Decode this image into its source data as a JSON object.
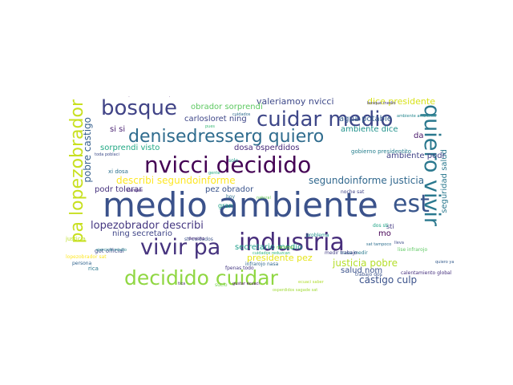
{
  "words": [
    {
      "text": "medio ambiente",
      "color": "#3b528b"
    },
    {
      "text": "decidido cuidar",
      "color": "#90d743"
    },
    {
      "text": "nvicci decidido",
      "color": "#440154"
    },
    {
      "text": "denisedresserg quiero",
      "color": "#2f6c8e"
    },
    {
      "text": "cuidar medio",
      "color": "#3f4889"
    },
    {
      "text": "bosque",
      "color": "#414487"
    },
    {
      "text": "industria",
      "color": "#472d7b"
    },
    {
      "text": "vivir pa",
      "color": "#46337e"
    },
    {
      "text": "pa lopezobrador",
      "color": "#c8e020"
    },
    {
      "text": "quiero vivir",
      "color": "#2a788e"
    },
    {
      "text": "est",
      "color": "#39568c"
    },
    {
      "text": "lopezobrador describi",
      "color": "#453781"
    },
    {
      "text": "castigo culp",
      "color": "#3b528b"
    },
    {
      "text": "justicia pobre",
      "color": "#b5de2b"
    },
    {
      "text": "pobre castigo",
      "color": "#355f8d"
    },
    {
      "text": "segundoinforme justicia",
      "color": "#31688e"
    },
    {
      "text": "describi segundoinforme",
      "color": "#fde725"
    },
    {
      "text": "valeriamoy nvicci",
      "color": "#3e4989"
    },
    {
      "text": "dice presidente",
      "color": "#d8e219"
    },
    {
      "text": "obrador sorprendi",
      "color": "#5ec962"
    },
    {
      "text": "sorprendi visto",
      "color": "#22a884"
    },
    {
      "text": "ambiente dice",
      "color": "#20928c"
    },
    {
      "text": "presidente pez",
      "color": "#e5e419"
    },
    {
      "text": "secretario medio",
      "color": "#1f9e89"
    },
    {
      "text": "pez obrador",
      "color": "#3a548c"
    },
    {
      "text": "ning secretario",
      "color": "#404688"
    },
    {
      "text": "dosa osperdidos",
      "color": "#472a7a"
    },
    {
      "text": "agua potable",
      "color": "#355e8d"
    },
    {
      "text": "salud nom",
      "color": "#3b528b"
    },
    {
      "text": "podr tolerar",
      "color": "#46327e"
    },
    {
      "text": "carlosloret ning",
      "color": "#3f4788"
    },
    {
      "text": "si si",
      "color": "#481f70"
    },
    {
      "text": "seguridad salud",
      "color": "#2a788e"
    },
    {
      "text": "ambiente podr",
      "color": "#414487"
    },
    {
      "text": "da",
      "color": "#481769"
    },
    {
      "text": "mo",
      "color": "#440154"
    },
    {
      "text": "sti",
      "color": "#443983"
    },
    {
      "text": "gran",
      "color": "#1fa187"
    },
    {
      "text": "got official",
      "color": "#3e4a89"
    },
    {
      "text": "presidentito lopezobrador",
      "color": "#482475"
    },
    {
      "text": "infrarojo nasa",
      "color": "#31688e"
    },
    {
      "text": "xi dosa",
      "color": "#2c718e"
    },
    {
      "text": "noche sat",
      "color": "#414487"
    },
    {
      "text": "sti cuidados",
      "color": "#3b528b"
    },
    {
      "text": "dos sti",
      "color": "#20a486"
    },
    {
      "text": "lise infrarojo",
      "color": "#5ec962"
    },
    {
      "text": "justicia",
      "color": "#bddf26"
    },
    {
      "text": "lopezobrador sat",
      "color": "#fde725"
    },
    {
      "text": "gobierno presidentito",
      "color": "#277f8e"
    },
    {
      "text": "osperdidos sagade sat",
      "color": "#a2da37"
    },
    {
      "text": "cuidados reduzcan",
      "color": "#2fb47c"
    },
    {
      "text": "tica",
      "color": "#482677"
    },
    {
      "text": "sucio",
      "color": "#7ad151"
    },
    {
      "text": "fpenas todo",
      "color": "#453882"
    },
    {
      "text": "nasa medir",
      "color": "#29798e"
    },
    {
      "text": "trabajo dos",
      "color": "#3b528b"
    },
    {
      "text": "problema",
      "color": "#21918c"
    },
    {
      "text": "nacional",
      "color": "#86d549"
    },
    {
      "text": "solo",
      "color": "#1e9b8a"
    },
    {
      "text": "hoy",
      "color": "#2d708e"
    },
    {
      "text": "necesita ambas",
      "color": "#404688"
    },
    {
      "text": "sat site",
      "color": "#3f4889"
    },
    {
      "text": "medir trabajo",
      "color": "#433e85"
    },
    {
      "text": "calentamiento global",
      "color": "#46307e"
    },
    {
      "text": "gustar ecuaci",
      "color": "#471063"
    },
    {
      "text": "ecuaci saber",
      "color": "#b0dd2f"
    },
    {
      "text": "sat tampoco",
      "color": "#2e6f8e"
    },
    {
      "text": "lleva",
      "color": "#3d4d8a"
    },
    {
      "text": "quiero ya",
      "color": "#365c8d"
    },
    {
      "text": "persona",
      "color": "#32648e"
    },
    {
      "text": "rica",
      "color": "#2a788e"
    },
    {
      "text": "derecho",
      "color": "#472c7a"
    },
    {
      "text": "natural",
      "color": "#6ccd5a"
    },
    {
      "text": "gente",
      "color": "#25ac82"
    },
    {
      "text": "pues",
      "color": "#3aba76"
    },
    {
      "text": "toda poblaci",
      "color": "#3e4c8a"
    },
    {
      "text": "cuidados",
      "color": "#2f6b8e"
    },
    {
      "text": "bosque medio",
      "color": "#443a83"
    },
    {
      "text": "ejercicio medio",
      "color": "#26828e"
    },
    {
      "text": "siempre",
      "color": "#482878"
    },
    {
      "text": "ambiente ambiente",
      "color": "#24878e"
    }
  ]
}
